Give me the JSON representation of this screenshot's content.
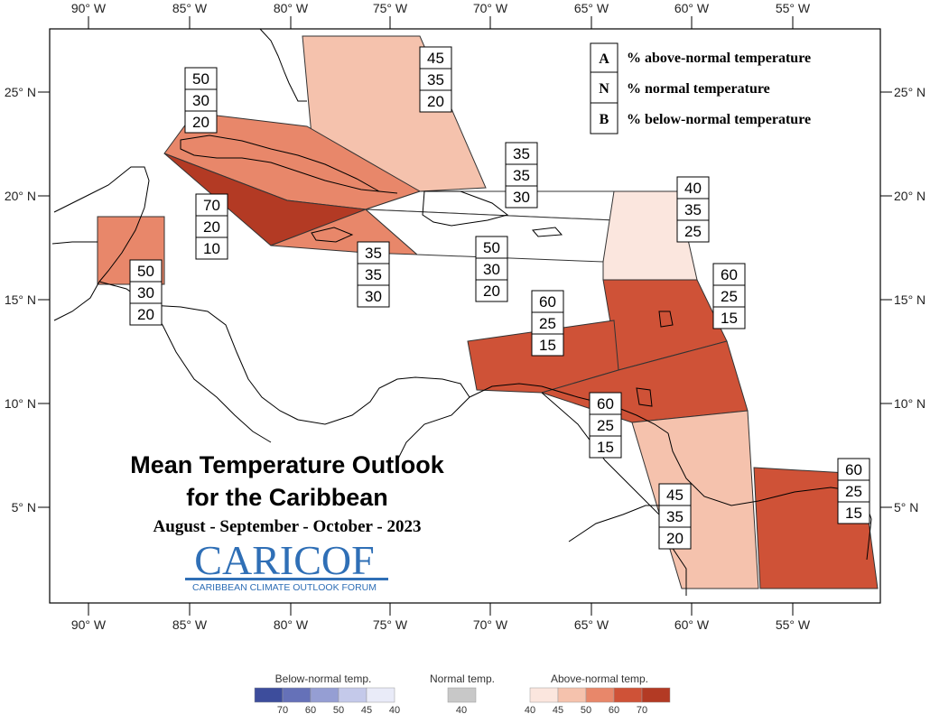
{
  "title_line1": "Mean Temperature Outlook",
  "title_line2": "for the Caribbean",
  "period": "August - September - October - 2023",
  "logo": {
    "text": "CARICOF",
    "tagline": "CARIBBEAN CLIMATE OUTLOOK FORUM",
    "color": "#2f6fb6"
  },
  "key": [
    {
      "letter": "A",
      "text": "% above-normal temperature"
    },
    {
      "letter": "N",
      "text": "% normal temperature"
    },
    {
      "letter": "B",
      "text": "% below-normal temperature"
    }
  ],
  "lon_labels": [
    "90° W",
    "85° W",
    "80° W",
    "75° W",
    "70° W",
    "65° W",
    "60° W",
    "55° W"
  ],
  "lat_labels": [
    "25° N",
    "20° N",
    "15° N",
    "10° N",
    "5° N"
  ],
  "probability_boxes": [
    {
      "values": [
        "45",
        "35",
        "20"
      ]
    },
    {
      "values": [
        "50",
        "30",
        "20"
      ]
    },
    {
      "values": [
        "35",
        "35",
        "30"
      ]
    },
    {
      "values": [
        "70",
        "20",
        "10"
      ]
    },
    {
      "values": [
        "40",
        "35",
        "25"
      ]
    },
    {
      "values": [
        "50",
        "30",
        "20"
      ]
    },
    {
      "values": [
        "35",
        "35",
        "30"
      ]
    },
    {
      "values": [
        "50",
        "30",
        "20"
      ]
    },
    {
      "values": [
        "60",
        "25",
        "15"
      ]
    },
    {
      "values": [
        "60",
        "25",
        "15"
      ]
    },
    {
      "values": [
        "60",
        "25",
        "15"
      ]
    },
    {
      "values": [
        "45",
        "35",
        "20"
      ]
    },
    {
      "values": [
        "60",
        "25",
        "15"
      ]
    }
  ],
  "scale": {
    "below_label": "Below-normal temp.",
    "normal_label": "Normal temp.",
    "above_label": "Above-normal temp.",
    "below_ticks": [
      "70",
      "60",
      "50",
      "45",
      "40"
    ],
    "normal_ticks": [
      "40"
    ],
    "above_ticks": [
      "40",
      "45",
      "50",
      "60",
      "70"
    ],
    "below_colors": [
      "#3d4d9c",
      "#6571b8",
      "#959ed3",
      "#c4c9ea",
      "#e9ebf8"
    ],
    "normal_color": "#c8c8c8",
    "above_colors": [
      "#fbe6de",
      "#f5c2ad",
      "#e8876a",
      "#cf5237",
      "#b33a24"
    ]
  }
}
